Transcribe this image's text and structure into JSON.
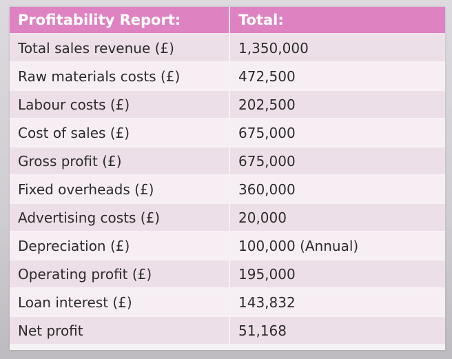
{
  "table": {
    "headers": [
      "Profitability Report:",
      "Total:"
    ],
    "rows": [
      [
        "Total sales revenue (£)",
        "1,350,000"
      ],
      [
        "Raw materials costs (£)",
        "472,500"
      ],
      [
        "Labour costs (£)",
        "202,500"
      ],
      [
        "Cost of sales (£)",
        "675,000"
      ],
      [
        "Gross profit (£)",
        "675,000"
      ],
      [
        "Fixed overheads (£)",
        "360,000"
      ],
      [
        "Advertising costs (£)",
        "20,000"
      ],
      [
        "Depreciation (£)",
        "100,000 (Annual)"
      ],
      [
        "Operating profit (£)",
        "195,000"
      ],
      [
        "Loan interest (£)",
        "143,832"
      ],
      [
        "Net profit",
        "51,168"
      ]
    ]
  },
  "colors": {
    "header_bg": "#df82c2",
    "row_odd": "#eddfe8",
    "row_even": "#f7eef4"
  }
}
